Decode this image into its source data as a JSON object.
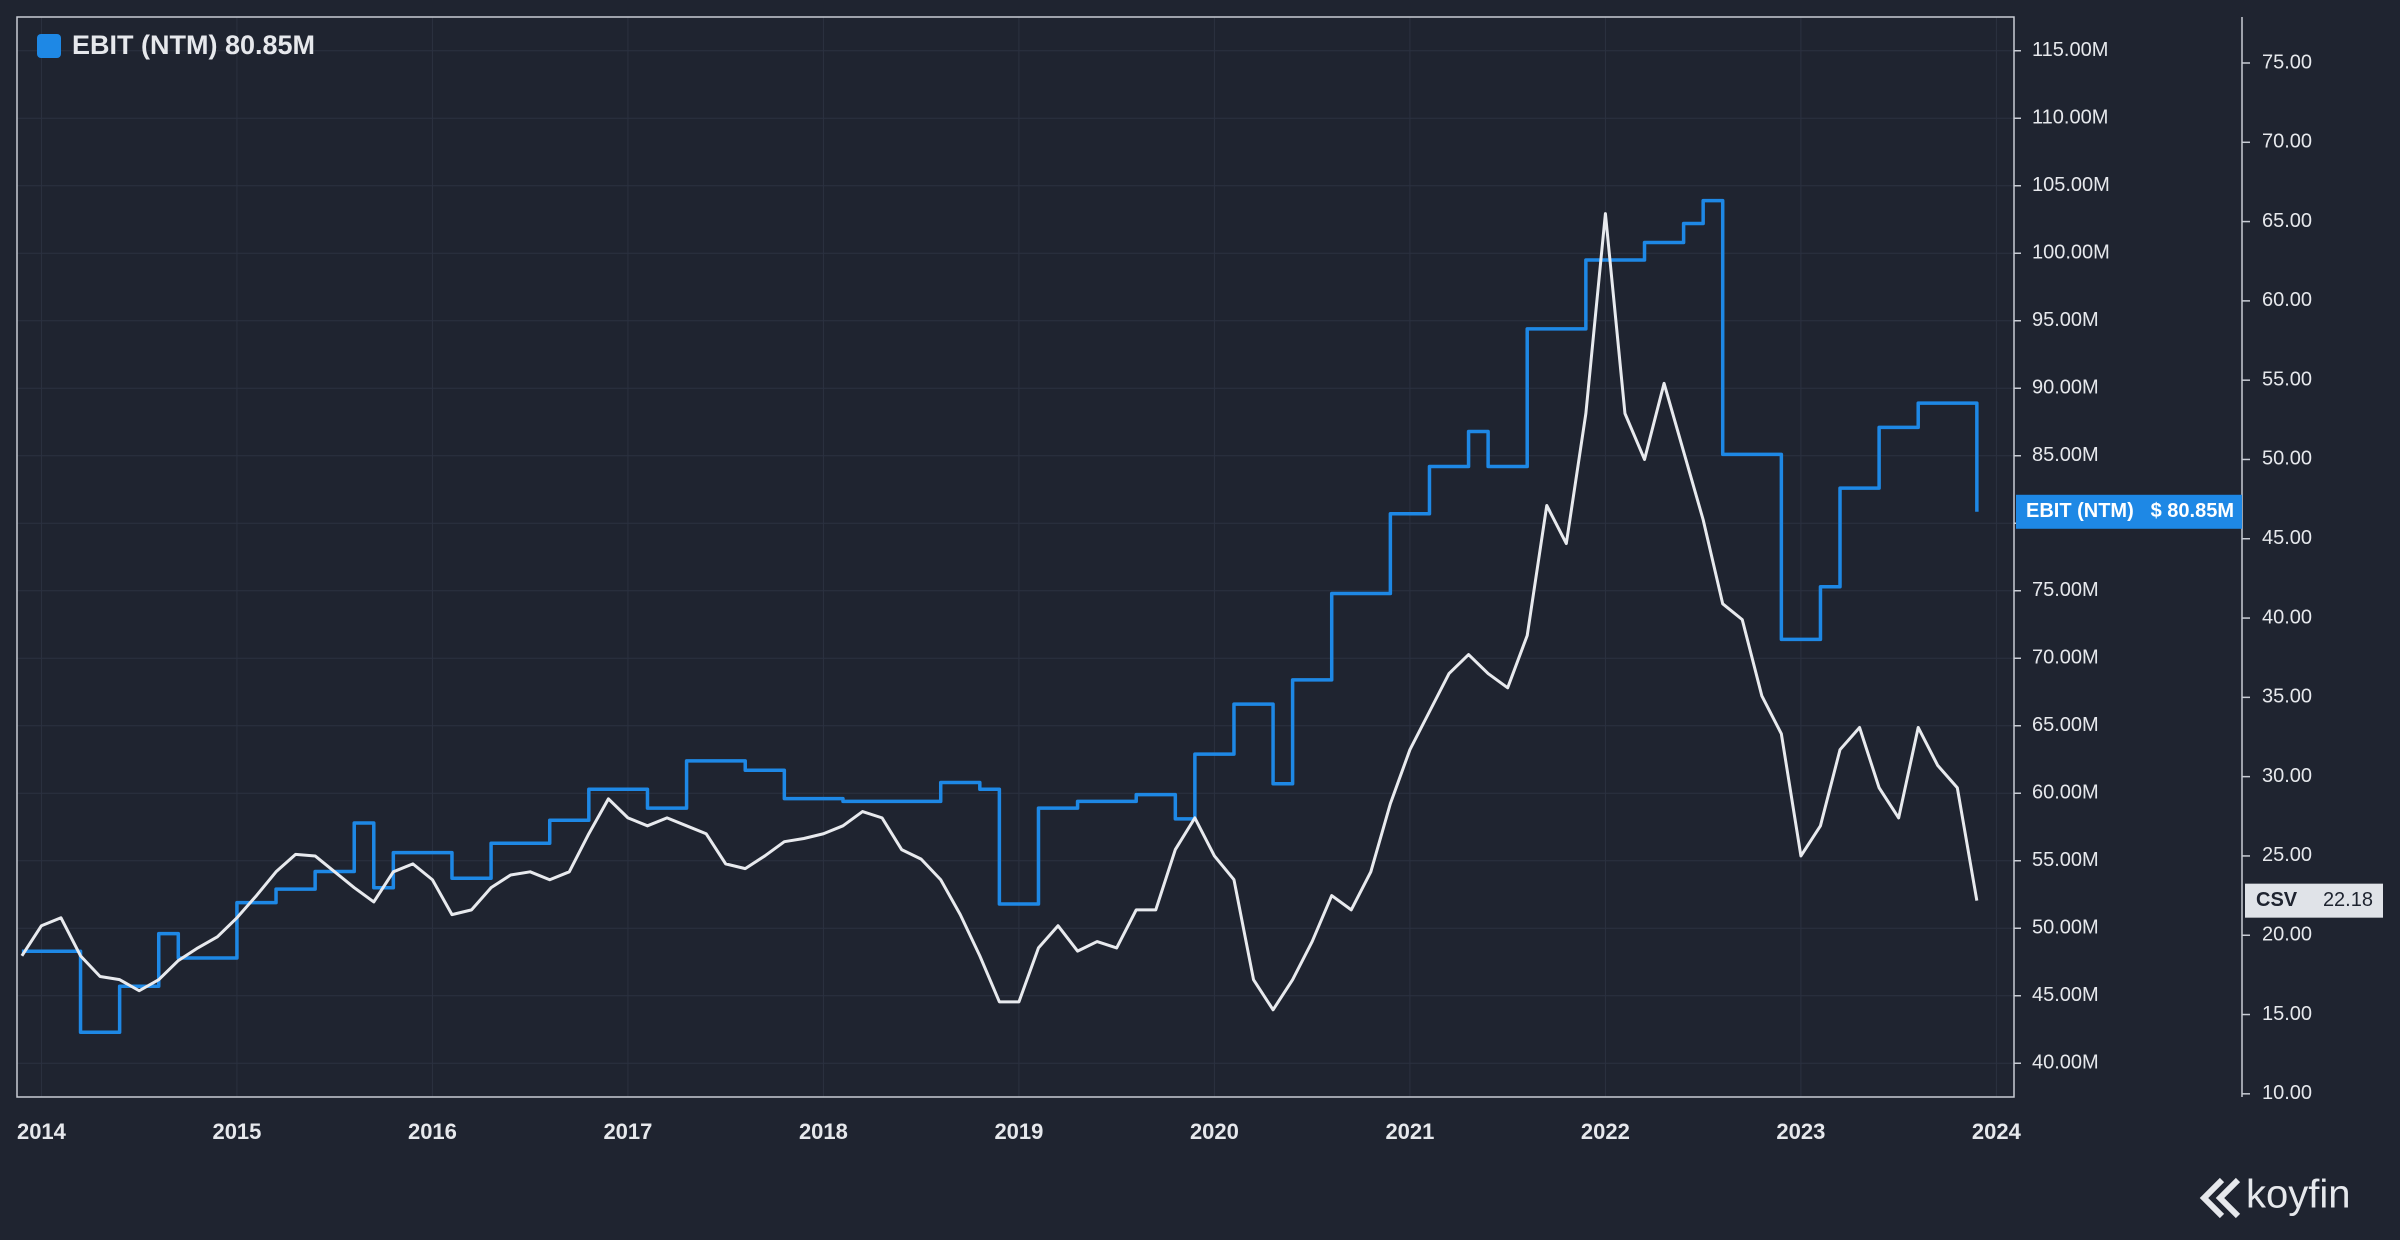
{
  "chart_data": {
    "type": "line",
    "legend": {
      "text": "EBIT (NTM) 80.85M"
    },
    "watermark": "koyfin",
    "xlim": [
      2013.875,
      2024.09
    ],
    "xticks": [
      2014,
      2015,
      2016,
      2017,
      2018,
      2019,
      2020,
      2021,
      2022,
      2023,
      2024
    ],
    "ylim": [
      37.5,
      117.5
    ],
    "yticks": [
      {
        "value": 40,
        "label": "40.00M"
      },
      {
        "value": 45,
        "label": "45.00M"
      },
      {
        "value": 50,
        "label": "50.00M"
      },
      {
        "value": 55,
        "label": "55.00M"
      },
      {
        "value": 60,
        "label": "60.00M"
      },
      {
        "value": 65,
        "label": "65.00M"
      },
      {
        "value": 70,
        "label": "70.00M"
      },
      {
        "value": 75,
        "label": "75.00M"
      },
      {
        "value": 80,
        "label": "80.00M"
      },
      {
        "value": 85,
        "label": "85.00M"
      },
      {
        "value": 90,
        "label": "90.00M"
      },
      {
        "value": 95,
        "label": "95.00M"
      },
      {
        "value": 100,
        "label": "100.00M"
      },
      {
        "value": 105,
        "label": "105.00M"
      },
      {
        "value": 110,
        "label": "110.00M"
      },
      {
        "value": 115,
        "label": "115.00M"
      }
    ],
    "y2lim": [
      9.8,
      77.9
    ],
    "y2ticks": [
      {
        "value": 10,
        "label": "10.00"
      },
      {
        "value": 15,
        "label": "15.00"
      },
      {
        "value": 20,
        "label": "20.00"
      },
      {
        "value": 25,
        "label": "25.00"
      },
      {
        "value": 30,
        "label": "30.00"
      },
      {
        "value": 35,
        "label": "35.00"
      },
      {
        "value": 40,
        "label": "40.00"
      },
      {
        "value": 45,
        "label": "45.00"
      },
      {
        "value": 50,
        "label": "50.00"
      },
      {
        "value": 55,
        "label": "55.00"
      },
      {
        "value": 60,
        "label": "60.00"
      },
      {
        "value": 65,
        "label": "65.00"
      },
      {
        "value": 70,
        "label": "70.00"
      },
      {
        "value": 75,
        "label": "75.00"
      }
    ],
    "grid": true,
    "x": [
      2013.9,
      2014.0,
      2014.1,
      2014.2,
      2014.3,
      2014.4,
      2014.5,
      2014.6,
      2014.7,
      2014.8,
      2014.9,
      2015.0,
      2015.1,
      2015.2,
      2015.3,
      2015.4,
      2015.5,
      2015.6,
      2015.7,
      2015.8,
      2015.9,
      2016.0,
      2016.1,
      2016.2,
      2016.3,
      2016.4,
      2016.5,
      2016.6,
      2016.7,
      2016.8,
      2016.9,
      2017.0,
      2017.1,
      2017.2,
      2017.3,
      2017.4,
      2017.5,
      2017.6,
      2017.7,
      2017.8,
      2017.9,
      2018.0,
      2018.1,
      2018.2,
      2018.3,
      2018.4,
      2018.5,
      2018.6,
      2018.7,
      2018.8,
      2018.9,
      2019.0,
      2019.1,
      2019.2,
      2019.3,
      2019.4,
      2019.5,
      2019.6,
      2019.7,
      2019.8,
      2019.9,
      2020.0,
      2020.1,
      2020.2,
      2020.3,
      2020.4,
      2020.5,
      2020.6,
      2020.7,
      2020.8,
      2020.9,
      2021.0,
      2021.1,
      2021.2,
      2021.3,
      2021.4,
      2021.5,
      2021.6,
      2021.7,
      2021.8,
      2021.9,
      2022.0,
      2022.1,
      2022.2,
      2022.3,
      2022.4,
      2022.5,
      2022.6,
      2022.7,
      2022.8,
      2022.9,
      2023.0,
      2023.1,
      2023.2,
      2023.3,
      2023.4,
      2023.5,
      2023.6,
      2023.7,
      2023.8,
      2023.9
    ],
    "series": [
      {
        "name": "EBIT (NTM)",
        "color": "#1e88e5",
        "step": "after",
        "tag_label": "$ 80.85M",
        "values": [
          48.3,
          48.3,
          48.3,
          42.3,
          42.3,
          45.7,
          45.7,
          49.6,
          47.8,
          47.8,
          47.8,
          51.9,
          51.9,
          52.9,
          52.9,
          54.2,
          54.2,
          57.8,
          53.0,
          55.6,
          55.6,
          55.6,
          53.7,
          53.7,
          56.3,
          56.3,
          56.3,
          58.0,
          58.0,
          60.3,
          60.3,
          60.3,
          58.9,
          58.9,
          62.4,
          62.4,
          62.4,
          61.7,
          61.7,
          59.6,
          59.6,
          59.6,
          59.4,
          59.4,
          59.4,
          59.4,
          59.4,
          60.8,
          60.8,
          60.3,
          51.8,
          51.8,
          58.9,
          58.9,
          59.4,
          59.4,
          59.4,
          59.9,
          59.9,
          58.1,
          62.9,
          62.9,
          66.6,
          66.6,
          60.7,
          68.4,
          68.4,
          74.8,
          74.8,
          74.8,
          80.7,
          80.7,
          84.2,
          84.2,
          86.8,
          84.2,
          84.2,
          94.4,
          94.4,
          94.4,
          99.5,
          99.5,
          99.5,
          100.8,
          100.8,
          102.2,
          103.9,
          85.1,
          85.1,
          85.1,
          71.4,
          71.4,
          75.3,
          82.6,
          82.6,
          87.1,
          87.1,
          88.9,
          88.9,
          88.9,
          80.85
        ]
      },
      {
        "name": "CSV",
        "color": "#e8eaee",
        "axis": "y2",
        "tag_label": "22.18",
        "values": [
          18.7,
          20.6,
          21.1,
          18.7,
          17.4,
          17.2,
          16.5,
          17.2,
          18.4,
          19.2,
          19.9,
          21.1,
          22.5,
          24.0,
          25.1,
          25.0,
          24.0,
          23.0,
          22.1,
          24.0,
          24.5,
          23.5,
          21.3,
          21.6,
          23.0,
          23.8,
          24.0,
          23.5,
          24.0,
          26.4,
          28.6,
          27.4,
          26.9,
          27.4,
          26.9,
          26.4,
          24.5,
          24.2,
          25.0,
          25.9,
          26.1,
          26.4,
          26.9,
          27.8,
          27.4,
          25.4,
          24.8,
          23.5,
          21.3,
          18.7,
          15.8,
          15.8,
          19.2,
          20.6,
          19.0,
          19.6,
          19.2,
          21.6,
          21.6,
          25.4,
          27.4,
          25.0,
          23.5,
          17.2,
          15.3,
          17.2,
          19.6,
          22.5,
          21.6,
          24.0,
          28.3,
          31.7,
          34.1,
          36.5,
          37.7,
          36.5,
          35.6,
          38.9,
          47.1,
          44.7,
          52.9,
          65.5,
          52.9,
          50.0,
          54.8,
          50.5,
          46.2,
          40.9,
          39.9,
          35.1,
          32.7,
          25.0,
          26.9,
          31.7,
          33.1,
          29.3,
          27.4,
          33.1,
          30.7,
          29.3,
          22.18
        ]
      }
    ]
  }
}
